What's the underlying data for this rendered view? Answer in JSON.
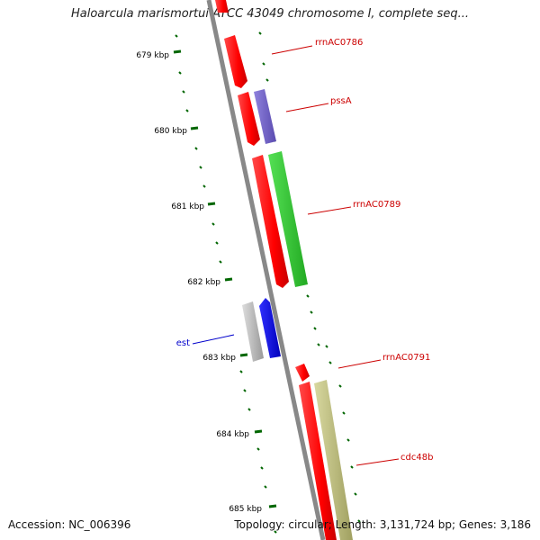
{
  "header": {
    "title": "Haloarcula marismortui ATCC 43049 chromosome I, complete seq..."
  },
  "footer": {
    "accession": "Accession: NC_006396",
    "summary": "Topology: circular; Length: 3,131,724 bp; Genes: 3,186"
  },
  "map": {
    "ticks": [
      "679 kbp",
      "680 kbp",
      "681 kbp",
      "682 kbp",
      "683 kbp",
      "684 kbp",
      "685 kbp"
    ],
    "gene_labels": [
      "rrnAC0786",
      "pssA",
      "rrnAC0789",
      "est",
      "rrnAC0791",
      "cdc48b"
    ],
    "colors": {
      "backbone": "#888888",
      "red_gene": "#ff0000",
      "purple_gene": "#7766cc",
      "green_gene": "#33cc33",
      "gray_gene": "#bbbbbb",
      "blue_gene": "#0000ee",
      "olive_gene": "#bbbb77",
      "tick": "#006600",
      "label_red": "#cc0000",
      "label_blue": "#0000cc"
    }
  }
}
